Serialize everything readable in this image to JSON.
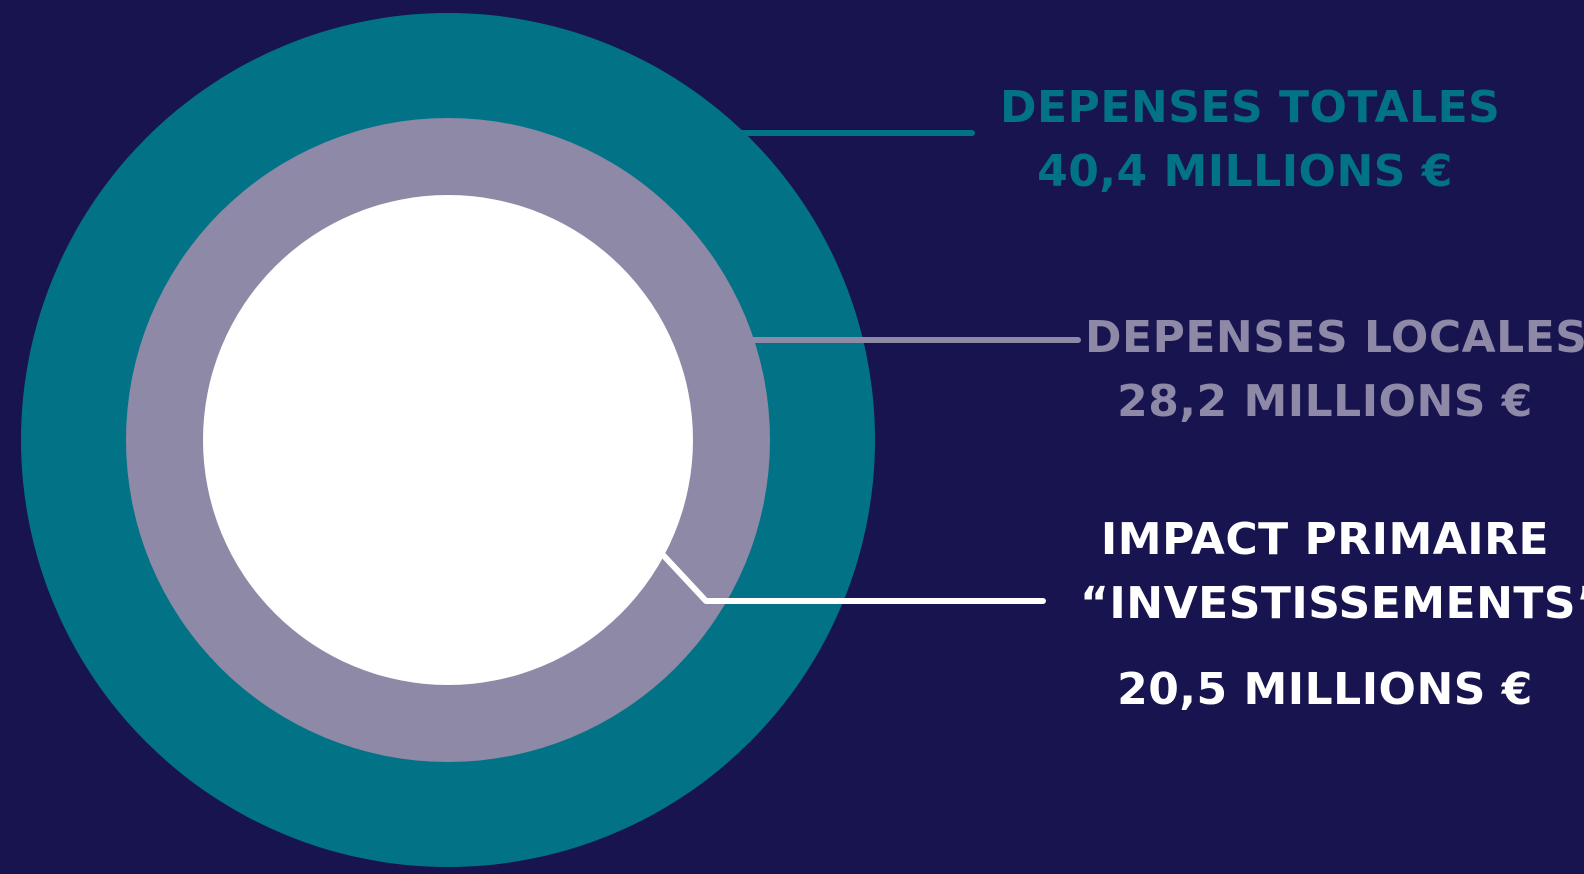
{
  "colors": {
    "background": "#17144f",
    "outer_ring": "#027386",
    "middle_ring": "#8d89a6",
    "inner_circle": "#ffffff",
    "total_text": "#027386",
    "local_text": "#8d89a6",
    "impact_text": "#ffffff"
  },
  "rings": {
    "total": {
      "title": "DEPENSES TOTALES",
      "value": "40,4 MILLIONS €"
    },
    "local": {
      "title": "DEPENSES LOCALES",
      "value": "28,2 MILLIONS €"
    },
    "impact": {
      "title_line1": "IMPACT PRIMAIRE",
      "title_line2": "“INVESTISSEMENTS”",
      "value": "20,5 MILLIONS €"
    }
  }
}
